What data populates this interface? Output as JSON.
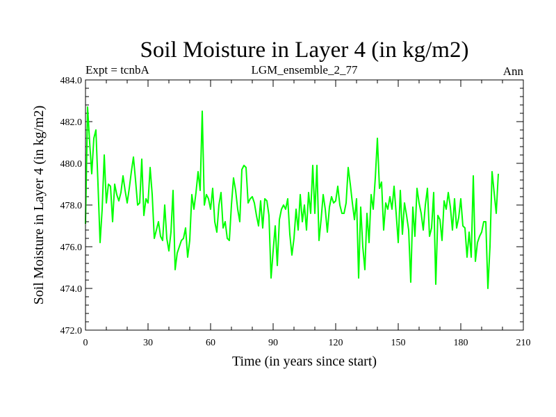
{
  "chart_data": {
    "type": "line",
    "title": "Soil Moisture in Layer 4 (in kg/m2)",
    "subtitle_left": "Expt = tcnbA",
    "subtitle_center": "LGM_ensemble_2_77",
    "subtitle_right": "Ann",
    "xlabel": "Time (in years since start)",
    "ylabel": "Soil Moisture in Layer 4 (in kg/m2)",
    "xlim": [
      0,
      210
    ],
    "ylim": [
      472,
      484
    ],
    "xticks": [
      0,
      30,
      60,
      90,
      120,
      150,
      180,
      210
    ],
    "xtick_labels": [
      "0",
      "30",
      "60",
      "90",
      "120",
      "150",
      "180",
      "210"
    ],
    "yticks": [
      472,
      474,
      476,
      478,
      480,
      482,
      484
    ],
    "ytick_labels": [
      "472.0",
      "474.0",
      "476.0",
      "478.0",
      "480.0",
      "482.0",
      "484.0"
    ],
    "line_color": "#00ff00",
    "series": [
      {
        "name": "Soil Moisture Layer 4",
        "x_start": 0,
        "x_step": 1,
        "values": [
          477.1,
          482.7,
          481.0,
          479.5,
          481.2,
          481.6,
          479.0,
          476.2,
          477.8,
          480.4,
          478.1,
          479.0,
          478.9,
          477.2,
          479.0,
          478.5,
          478.2,
          478.6,
          479.4,
          478.7,
          478.1,
          478.8,
          479.6,
          480.3,
          479.2,
          478.0,
          478.1,
          480.2,
          477.5,
          478.3,
          478.1,
          479.8,
          478.5,
          476.4,
          476.8,
          477.2,
          476.5,
          476.3,
          478.0,
          476.4,
          475.8,
          476.7,
          478.7,
          474.9,
          475.7,
          476.0,
          476.3,
          476.4,
          476.9,
          475.5,
          476.3,
          478.5,
          477.8,
          478.6,
          479.6,
          478.7,
          482.5,
          478.0,
          478.5,
          478.3,
          477.8,
          478.8,
          477.2,
          476.7,
          478.0,
          478.6,
          476.9,
          477.2,
          476.4,
          476.3,
          478.0,
          479.3,
          478.7,
          477.8,
          477.2,
          479.7,
          479.9,
          479.8,
          478.1,
          478.3,
          478.4,
          478.1,
          477.5,
          477.0,
          478.2,
          476.9,
          478.3,
          478.2,
          477.5,
          474.5,
          475.8,
          477.0,
          475.1,
          477.3,
          477.8,
          478.0,
          477.8,
          478.3,
          476.6,
          475.6,
          476.4,
          477.8,
          476.8,
          478.5,
          477.2,
          478.0,
          476.8,
          478.6,
          477.6,
          479.9,
          477.6,
          479.9,
          476.3,
          477.3,
          478.5,
          477.8,
          476.7,
          477.9,
          478.4,
          478.1,
          478.2,
          478.9,
          478.0,
          477.6,
          477.6,
          478.1,
          479.8,
          479.0,
          478.1,
          477.3,
          478.3,
          474.5,
          477.9,
          476.0,
          474.9,
          477.6,
          476.2,
          478.5,
          477.8,
          479.3,
          481.2,
          478.8,
          479.1,
          476.8,
          478.1,
          477.8,
          478.4,
          477.8,
          478.9,
          477.6,
          476.2,
          478.7,
          476.6,
          478.1,
          477.5,
          476.8,
          474.3,
          477.9,
          476.5,
          478.8,
          478.1,
          477.6,
          476.8,
          478.0,
          478.8,
          476.5,
          476.9,
          478.6,
          474.2,
          477.5,
          477.3,
          476.3,
          478.2,
          477.8,
          478.6,
          477.9,
          476.8,
          478.3,
          476.9,
          477.4,
          478.3,
          477.0,
          476.9,
          475.5,
          476.7,
          475.5,
          479.4,
          475.3,
          476.2,
          476.5,
          476.7,
          477.2,
          477.2,
          474.0,
          476.0,
          479.6,
          478.6,
          477.6,
          479.5
        ]
      }
    ]
  }
}
